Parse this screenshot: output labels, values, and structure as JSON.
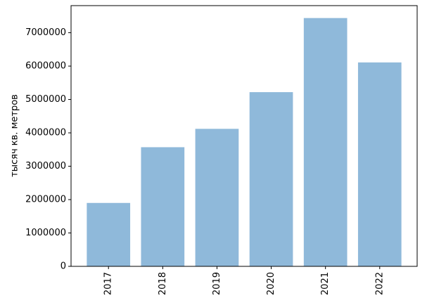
{
  "chart_data": {
    "type": "bar",
    "ylabel": "тысяч кв. метров",
    "categories": [
      "2017",
      "2018",
      "2019",
      "2020",
      "2021",
      "2022"
    ],
    "values": [
      1900000,
      3570000,
      4120000,
      5220000,
      7440000,
      6110000
    ],
    "color": "#8fb9da",
    "ylim": [
      0,
      7812000
    ],
    "yticks": [
      0,
      1000000,
      2000000,
      3000000,
      4000000,
      5000000,
      6000000,
      7000000
    ]
  }
}
